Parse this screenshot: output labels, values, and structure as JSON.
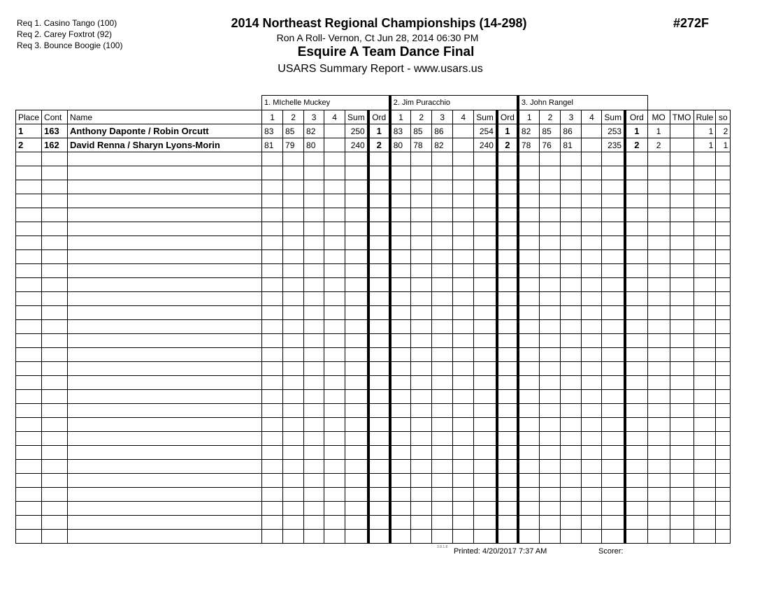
{
  "requirements": [
    "Req  1.  Casino Tango (100)",
    "Req  2.  Carey Foxtrot (92)",
    "Req  3.  Bounce Boogie (100)"
  ],
  "header": {
    "title": "2014 Northeast Regional Championships (14-298)",
    "subtitle": "Ron A Roll- Vernon, Ct  Jun 28, 2014  06:30 PM",
    "event": "Esquire A Team Dance Final",
    "report": "USARS Summary Report - www.usars.us",
    "event_number": "#272F"
  },
  "judges": [
    "1.  MIchelle Muckey",
    "2.  Jim Puracchio",
    "3.  John Rangel"
  ],
  "columns": {
    "place": "Place",
    "cont": "Cont",
    "name": "Name",
    "marks": [
      "1",
      "2",
      "3",
      "4",
      "Sum",
      "Ord"
    ],
    "mo": "MO",
    "tmo": "TMO",
    "rule": "Rule",
    "so": "so"
  },
  "rows": [
    {
      "place": "1",
      "cont": "163",
      "name": "Anthony Daponte / Robin Orcutt",
      "judges": [
        [
          "83",
          "85",
          "82",
          "",
          "250",
          "1"
        ],
        [
          "83",
          "85",
          "86",
          "",
          "254",
          "1"
        ],
        [
          "82",
          "85",
          "86",
          "",
          "253",
          "1"
        ]
      ],
      "mo": "1",
      "tmo": "",
      "rule": "1",
      "so": "2"
    },
    {
      "place": "2",
      "cont": "162",
      "name": "David Renna / Sharyn Lyons-Morin",
      "judges": [
        [
          "81",
          "79",
          "80",
          "",
          "240",
          "2"
        ],
        [
          "80",
          "78",
          "82",
          "",
          "240",
          "2"
        ],
        [
          "78",
          "76",
          "81",
          "",
          "235",
          "2"
        ]
      ],
      "mo": "2",
      "tmo": "",
      "rule": "1",
      "so": "1"
    }
  ],
  "footer": {
    "version": "3.8.1.8",
    "printed": "Printed:  4/20/2017  7:37 AM",
    "scorer": "Scorer:"
  }
}
